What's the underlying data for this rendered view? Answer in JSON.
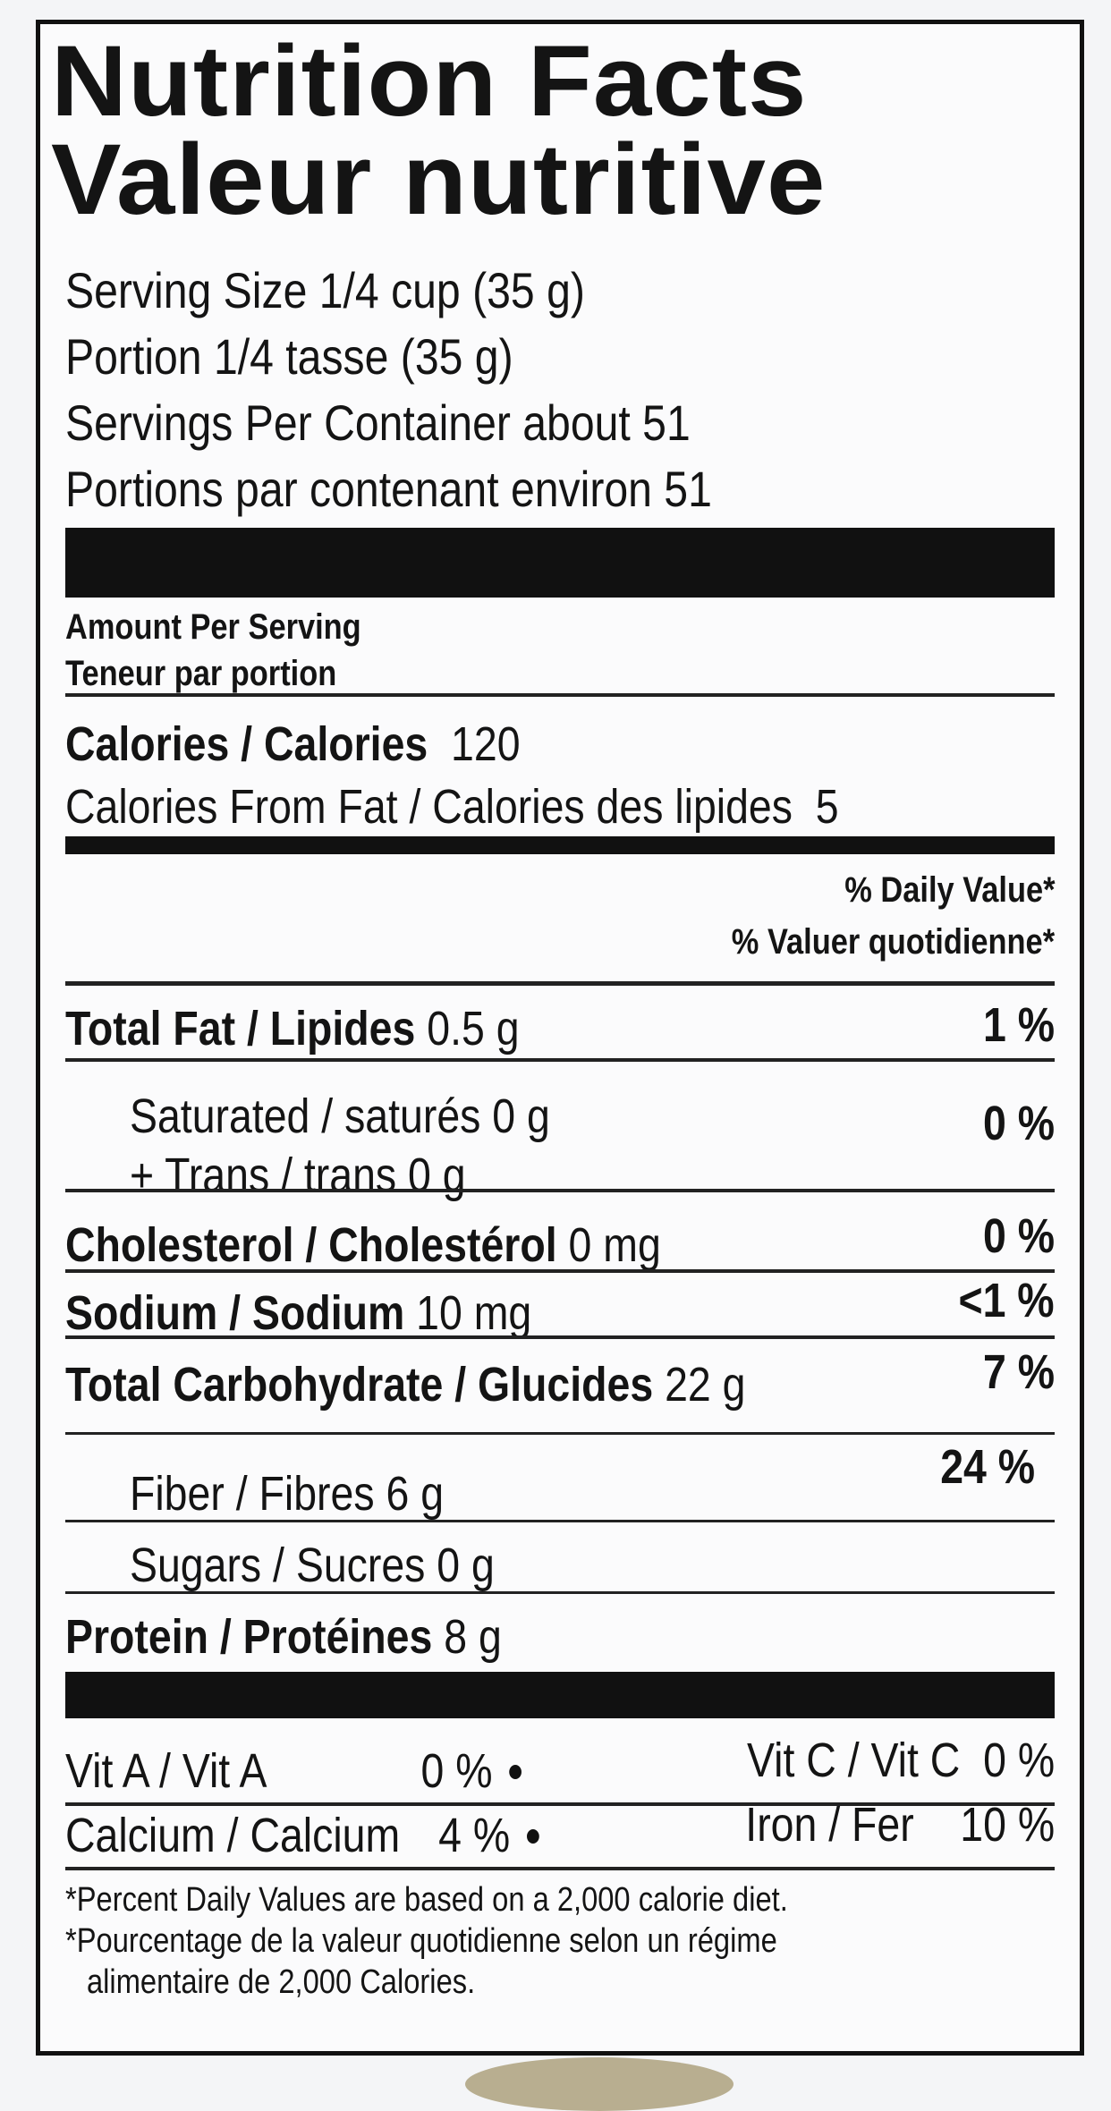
{
  "title_en": "Nutrition Facts",
  "title_fr": "Valeur nutritive",
  "serving": {
    "size": "Serving Size   1/4 cup (35 g)",
    "portion": "Portion   1/4 tasse (35 g)",
    "per_container": "Servings Per Container   about 51",
    "par_contenant": "Portions par contenant   environ 51"
  },
  "amount_per_serving": "Amount Per Serving",
  "teneur_par_portion": "Teneur par portion",
  "calories": {
    "label": "Calories / Calories",
    "value": "120"
  },
  "calories_fat": {
    "label": "Calories From Fat / Calories des lipides",
    "value": "5"
  },
  "dv_header_en": "% Daily Value*",
  "dv_header_fr": "% Valuer quotidienne*",
  "nutrients": [
    {
      "label": "Total Fat / Lipides",
      "amount": "0.5 g",
      "dv": "1 %"
    },
    {
      "label": "Saturated / saturés",
      "amount": "0 g",
      "dv": "0 %"
    },
    {
      "label": "+ Trans / trans",
      "amount": "0 g",
      "dv": ""
    },
    {
      "label": "Cholesterol / Cholestérol",
      "amount": "0 mg",
      "dv": "0 %"
    },
    {
      "label": "Sodium / Sodium",
      "amount": "10 mg",
      "dv": "<1 %"
    },
    {
      "label": "Total Carbohydrate / Glucides",
      "amount": "22 g",
      "dv": "7 %"
    },
    {
      "label": "Fiber / Fibres",
      "amount": "6 g",
      "dv": "24 %"
    },
    {
      "label": "Sugars / Sucres",
      "amount": "0 g",
      "dv": ""
    },
    {
      "label": "Protein / Protéines",
      "amount": "8 g",
      "dv": ""
    }
  ],
  "vitamins": [
    {
      "label": "Vit A / Vit A",
      "value": "0 %"
    },
    {
      "label": "Vit C / Vit C",
      "value": "0 %"
    },
    {
      "label": "Calcium / Calcium",
      "value": "4 %"
    },
    {
      "label": "Iron / Fer",
      "value": "10 %"
    }
  ],
  "footnote": [
    "*Percent Daily Values are based on a 2,000 calorie diet.",
    "*Pourcentage de la valeur quotidienne selon un régime",
    "alimentaire de 2,000 Calories."
  ]
}
